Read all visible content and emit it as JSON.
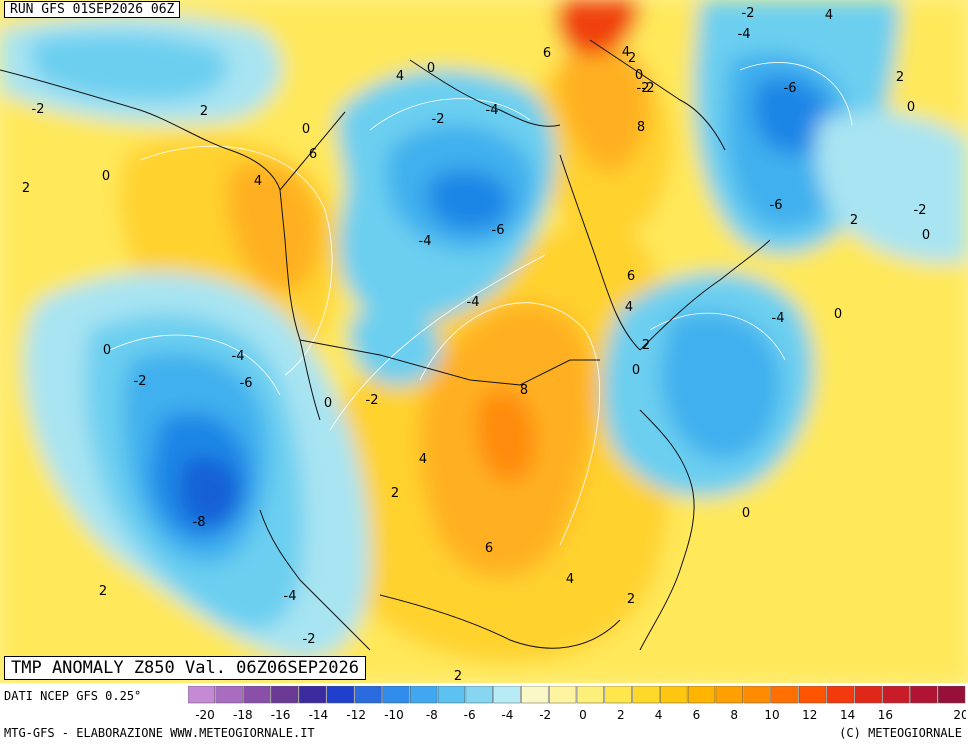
{
  "header": {
    "run": "RUN GFS 01SEP2026 06Z"
  },
  "title": "TMP ANOMALY Z850 Val. 06Z06SEP2026",
  "source": "DATI NCEP GFS 0.25°",
  "footer": {
    "left": "MTG-GFS - ELABORAZIONE WWW.METEOGIORNALE.IT",
    "right": "(C) METEOGIORNALE"
  },
  "colorbar": {
    "labels": [
      "-20",
      "-18",
      "-16",
      "-14",
      "-12",
      "-10",
      "-8",
      "-6",
      "-4",
      "-2",
      "0",
      "2",
      "4",
      "6",
      "8",
      "10",
      "12",
      "14",
      "16",
      "20"
    ],
    "label_values": [
      -20,
      -18,
      -16,
      -14,
      -12,
      -10,
      -8,
      -6,
      -4,
      -2,
      0,
      2,
      4,
      6,
      8,
      10,
      12,
      14,
      16,
      20
    ],
    "colors": [
      "#c48bd4",
      "#a86cc0",
      "#8a4fa8",
      "#6b3a94",
      "#3c2aa0",
      "#1f3fcc",
      "#2a6be0",
      "#2f8ceb",
      "#3fa8f0",
      "#5cc2f2",
      "#86d6f2",
      "#b7ebf6",
      "#fbf8c8",
      "#fff5a0",
      "#fff07a",
      "#ffe64d",
      "#ffd92a",
      "#ffc70f",
      "#ffb500",
      "#ffa000",
      "#ff8c00",
      "#ff7000",
      "#ff5500",
      "#f23a0c",
      "#e02818",
      "#c81c28",
      "#b01432",
      "#96103a"
    ]
  },
  "map": {
    "colors": {
      "ocean_warm": "#fff290",
      "yellow": "#ffe85a",
      "gold": "#ffd22e",
      "orange": "#ffb020",
      "deep_orange": "#ff8c10",
      "red": "#f04010",
      "cyan_light": "#a8e4f2",
      "cyan": "#6ccff0",
      "blue_light": "#40b0ee",
      "blue": "#1f86e6",
      "blue_deep": "#1360d6",
      "coast": "#111111",
      "contour": "#ffffff"
    },
    "values": [
      {
        "t": "-2"
      },
      {
        "t": "2"
      },
      {
        "t": "0"
      },
      {
        "t": "2"
      },
      {
        "t": "6"
      },
      {
        "t": "4"
      },
      {
        "t": "0"
      },
      {
        "t": "4"
      },
      {
        "t": "4"
      },
      {
        "t": "0"
      },
      {
        "t": "-2"
      },
      {
        "t": "-4"
      },
      {
        "t": "6"
      },
      {
        "t": "2"
      },
      {
        "t": "4"
      },
      {
        "t": "0"
      },
      {
        "t": "-2"
      },
      {
        "t": "8"
      },
      {
        "t": "-4"
      },
      {
        "t": "-6"
      },
      {
        "t": "-4"
      },
      {
        "t": "-2"
      },
      {
        "t": "6"
      },
      {
        "t": "4"
      },
      {
        "t": "2"
      },
      {
        "t": "0"
      },
      {
        "t": "-6"
      },
      {
        "t": "-6"
      },
      {
        "t": "2"
      },
      {
        "t": "-2"
      },
      {
        "t": "0"
      },
      {
        "t": "2"
      },
      {
        "t": "0"
      },
      {
        "t": "-4"
      },
      {
        "t": "0"
      },
      {
        "t": "0"
      },
      {
        "t": "-2"
      },
      {
        "t": "-4"
      },
      {
        "t": "-6"
      },
      {
        "t": "0"
      },
      {
        "t": "-2"
      },
      {
        "t": "8"
      },
      {
        "t": "4"
      },
      {
        "t": "2"
      },
      {
        "t": "-8"
      },
      {
        "t": "0"
      },
      {
        "t": "6"
      },
      {
        "t": "4"
      },
      {
        "t": "2"
      },
      {
        "t": "2"
      },
      {
        "t": "-4"
      },
      {
        "t": "-2"
      },
      {
        "t": "2"
      },
      {
        "t": "-2"
      },
      {
        "t": "-4"
      }
    ]
  }
}
